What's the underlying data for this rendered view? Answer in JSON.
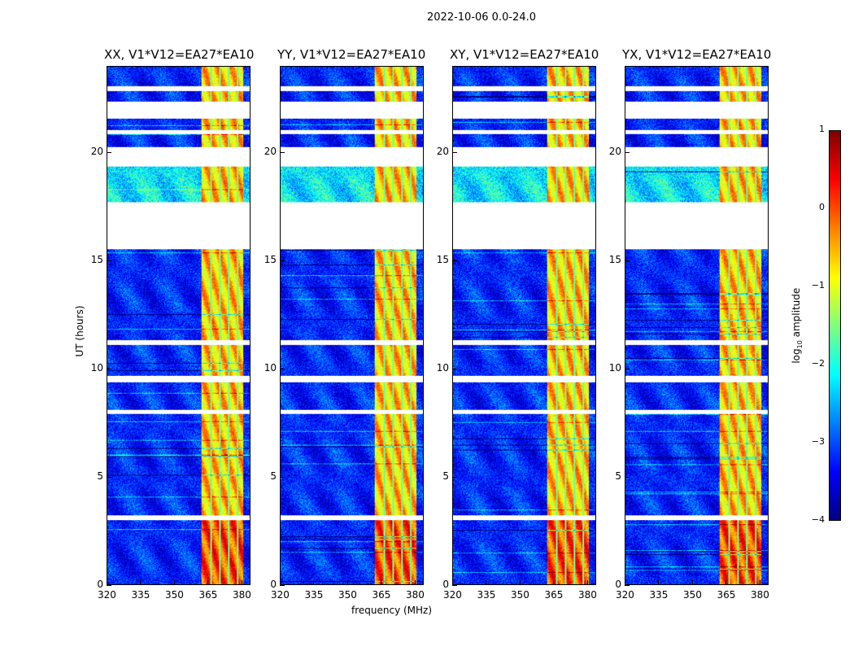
{
  "figure_title": "2022-10-06 0.0-24.0",
  "chart_data": {
    "type": "heatmap",
    "panels": [
      {
        "title": "XX, V1*V12=EA27*EA10"
      },
      {
        "title": "YY, V1*V12=EA27*EA10"
      },
      {
        "title": "XY, V1*V12=EA27*EA10"
      },
      {
        "title": "YX, V1*V12=EA27*EA10"
      }
    ],
    "xlabel": "frequency (MHz)",
    "ylabel": "UT (hours)",
    "xlim": [
      320,
      384
    ],
    "ylim": [
      0,
      24
    ],
    "xticks": [
      "320",
      "335",
      "350",
      "365",
      "380"
    ],
    "xtick_values": [
      320,
      335,
      350,
      365,
      380
    ],
    "yticks": [
      "0",
      "5",
      "10",
      "15",
      "20"
    ],
    "ytick_values": [
      0,
      5,
      10,
      15,
      20
    ],
    "colorbar": {
      "label": "log10 amplitude",
      "label_main": "log",
      "label_sub": "10",
      "label_rest": " amplitude",
      "range": [
        -4,
        1
      ],
      "ticks": [
        "1",
        "0",
        "−1",
        "−2",
        "−3",
        "−4"
      ],
      "tick_values": [
        1,
        0,
        -1,
        -2,
        -3,
        -4
      ],
      "colormap": "jet"
    },
    "data_gaps_hours": [
      [
        3.0,
        3.2
      ],
      [
        7.9,
        8.1
      ],
      [
        9.4,
        9.7
      ],
      [
        11.1,
        11.35
      ],
      [
        15.55,
        17.75
      ],
      [
        19.4,
        20.3
      ],
      [
        20.9,
        21.1
      ],
      [
        21.6,
        22.4
      ],
      [
        22.9,
        23.1
      ]
    ],
    "rfi_band_mhz": [
      362,
      381
    ],
    "rfi_dark_channels_mhz": [
      366.5,
      370.5,
      374.5,
      378.5
    ],
    "background_level_log10": -3.2,
    "rfi_level_log10": -0.6,
    "noisy_period_hours": [
      17.75,
      19.4
    ]
  }
}
